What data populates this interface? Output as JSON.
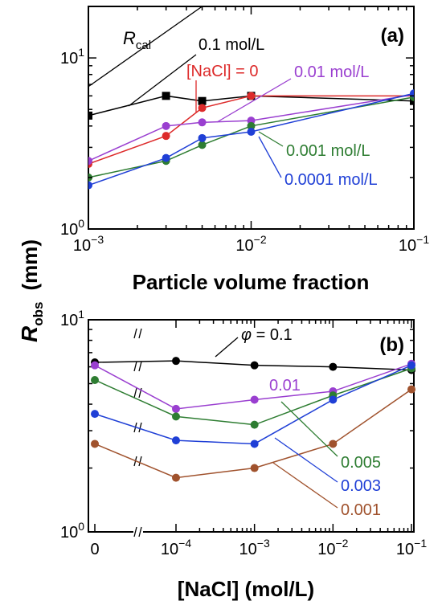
{
  "chart_data": [
    {
      "panel": "(a)",
      "type": "line",
      "xlabel": "Particle volume fraction",
      "ylabel": "R_obs  (mm)",
      "xscale": "log",
      "yscale": "log",
      "xlim": [
        0.001,
        0.1
      ],
      "ylim": [
        1,
        20
      ],
      "x_tick_labels": [
        {
          "value": 0.001,
          "base": "10",
          "exp": "−3"
        },
        {
          "value": 0.01,
          "base": "10",
          "exp": "−2"
        },
        {
          "value": 0.1,
          "base": "10",
          "exp": "−1"
        }
      ],
      "y_tick_labels": [
        {
          "value": 1,
          "base": "10",
          "exp": "0"
        },
        {
          "value": 10,
          "base": "10",
          "exp": "1"
        }
      ],
      "series": [
        {
          "name": "0.1 mol/L",
          "color": "#000000",
          "marker": "square",
          "x": [
            0.001,
            0.003,
            0.005,
            0.01,
            0.1
          ],
          "y": [
            4.6,
            6.0,
            5.6,
            6.0,
            5.6
          ]
        },
        {
          "name": "[NaCl] = 0",
          "color": "#dd2a2a",
          "marker": "circle",
          "x": [
            0.001,
            0.003,
            0.005,
            0.01,
            0.1
          ],
          "y": [
            2.4,
            3.5,
            5.1,
            6.0,
            6.0
          ]
        },
        {
          "name": "0.01 mol/L",
          "color": "#9a3fd0",
          "marker": "circle",
          "x": [
            0.001,
            0.003,
            0.005,
            0.01,
            0.1
          ],
          "y": [
            2.5,
            4.0,
            4.2,
            4.3,
            6.1
          ]
        },
        {
          "name": "0.001 mol/L",
          "color": "#2e7d32",
          "marker": "circle",
          "x": [
            0.001,
            0.003,
            0.005,
            0.01,
            0.1
          ],
          "y": [
            2.0,
            2.5,
            3.1,
            4.0,
            5.9
          ]
        },
        {
          "name": "0.0001 mol/L",
          "color": "#1f3fd6",
          "marker": "circle",
          "x": [
            0.001,
            0.003,
            0.005,
            0.01,
            0.1
          ],
          "y": [
            1.8,
            2.6,
            3.4,
            3.7,
            6.2
          ]
        }
      ],
      "reference_line": {
        "name": "R",
        "subscript": "cal",
        "color": "#000000",
        "x": [
          0.001,
          0.005
        ],
        "y": [
          6.8,
          20
        ]
      },
      "annotations": [
        {
          "text": "0.1 mol/L",
          "color": "#000000",
          "series": "0.1 mol/L"
        },
        {
          "text": "[NaCl] = 0",
          "color": "#dd2a2a",
          "series": "[NaCl] = 0"
        },
        {
          "text": "0.01 mol/L",
          "color": "#9a3fd0",
          "series": "0.01 mol/L"
        },
        {
          "text": "0.001 mol/L",
          "color": "#2e7d32",
          "series": "0.001 mol/L"
        },
        {
          "text": "0.0001 mol/L",
          "color": "#1f3fd6",
          "series": "0.0001 mol/L"
        }
      ]
    },
    {
      "panel": "(b)",
      "type": "line",
      "xlabel": "[NaCl]  (mol/L)",
      "ylabel": "R_obs  (mm)",
      "xscale": "log with broken axis (0 plotted left of break)",
      "yscale": "log",
      "ylim": [
        1,
        10
      ],
      "x_tick_labels": [
        {
          "value": 0,
          "base": "0",
          "exp": ""
        },
        {
          "value": 0.0001,
          "base": "10",
          "exp": "−4"
        },
        {
          "value": 0.001,
          "base": "10",
          "exp": "−3"
        },
        {
          "value": 0.01,
          "base": "10",
          "exp": "−2"
        },
        {
          "value": 0.1,
          "base": "10",
          "exp": "−1"
        }
      ],
      "y_tick_labels": [
        {
          "value": 1,
          "base": "10",
          "exp": "0"
        },
        {
          "value": 10,
          "base": "10",
          "exp": "1"
        }
      ],
      "x": [
        0,
        0.0001,
        0.001,
        0.01,
        0.1
      ],
      "series": [
        {
          "name": "φ = 0.1",
          "color": "#000000",
          "values": [
            6.3,
            6.4,
            6.1,
            6.0,
            5.8
          ]
        },
        {
          "name": "0.01",
          "color": "#9a3fd0",
          "values": [
            6.1,
            3.8,
            4.2,
            4.6,
            6.2
          ]
        },
        {
          "name": "0.005",
          "color": "#2e7d32",
          "values": [
            5.2,
            3.5,
            3.2,
            4.4,
            5.9
          ]
        },
        {
          "name": "0.003",
          "color": "#1f3fd6",
          "values": [
            3.6,
            2.7,
            2.6,
            4.2,
            6.1
          ]
        },
        {
          "name": "0.001",
          "color": "#a0522d",
          "values": [
            2.6,
            1.8,
            2.0,
            2.6,
            4.7
          ]
        }
      ],
      "annotations": [
        {
          "symbol": "φ",
          "text": " = 0.1",
          "color": "#000000"
        },
        {
          "text": "0.01",
          "color": "#9a3fd0"
        },
        {
          "text": "0.005",
          "color": "#2e7d32"
        },
        {
          "text": "0.003",
          "color": "#1f3fd6"
        },
        {
          "text": "0.001",
          "color": "#a0522d"
        }
      ]
    }
  ],
  "shared_ylabel": {
    "main": "R",
    "sub": "obs",
    "unit": "(mm)"
  }
}
